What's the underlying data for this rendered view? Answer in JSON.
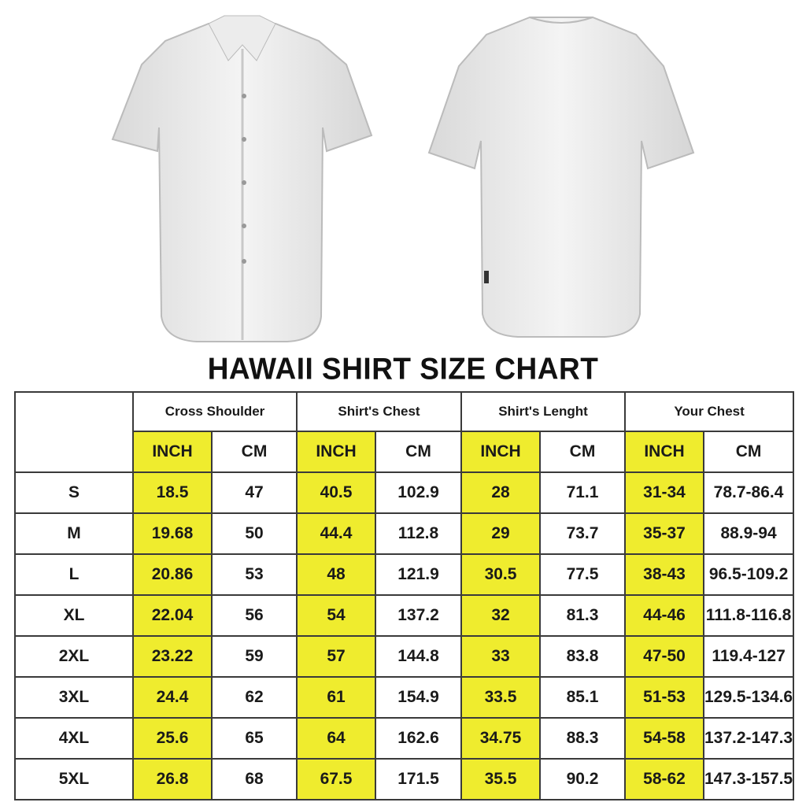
{
  "title": "HAWAII SHIRT SIZE CHART",
  "colors": {
    "highlight": "#efec2e",
    "border": "#3a3a3a",
    "text": "#1a1a1a"
  },
  "images": {
    "front": "white-short-sleeve-shirt-front",
    "back": "white-short-sleeve-shirt-back"
  },
  "chart_data": {
    "type": "table",
    "title": "HAWAII SHIRT SIZE CHART",
    "groups": [
      "Cross Shoulder",
      "Shirt's Chest",
      "Shirt's Lenght",
      "Your Chest"
    ],
    "units": [
      "INCH",
      "CM"
    ],
    "rows": [
      {
        "size": "S",
        "values": [
          "18.5",
          "47",
          "40.5",
          "102.9",
          "28",
          "71.1",
          "31-34",
          "78.7-86.4"
        ]
      },
      {
        "size": "M",
        "values": [
          "19.68",
          "50",
          "44.4",
          "112.8",
          "29",
          "73.7",
          "35-37",
          "88.9-94"
        ]
      },
      {
        "size": "L",
        "values": [
          "20.86",
          "53",
          "48",
          "121.9",
          "30.5",
          "77.5",
          "38-43",
          "96.5-109.2"
        ]
      },
      {
        "size": "XL",
        "values": [
          "22.04",
          "56",
          "54",
          "137.2",
          "32",
          "81.3",
          "44-46",
          "111.8-116.8"
        ]
      },
      {
        "size": "2XL",
        "values": [
          "23.22",
          "59",
          "57",
          "144.8",
          "33",
          "83.8",
          "47-50",
          "119.4-127"
        ]
      },
      {
        "size": "3XL",
        "values": [
          "24.4",
          "62",
          "61",
          "154.9",
          "33.5",
          "85.1",
          "51-53",
          "129.5-134.6"
        ]
      },
      {
        "size": "4XL",
        "values": [
          "25.6",
          "65",
          "64",
          "162.6",
          "34.75",
          "88.3",
          "54-58",
          "137.2-147.3"
        ]
      },
      {
        "size": "5XL",
        "values": [
          "26.8",
          "68",
          "67.5",
          "171.5",
          "35.5",
          "90.2",
          "58-62",
          "147.3-157.5"
        ]
      }
    ]
  }
}
